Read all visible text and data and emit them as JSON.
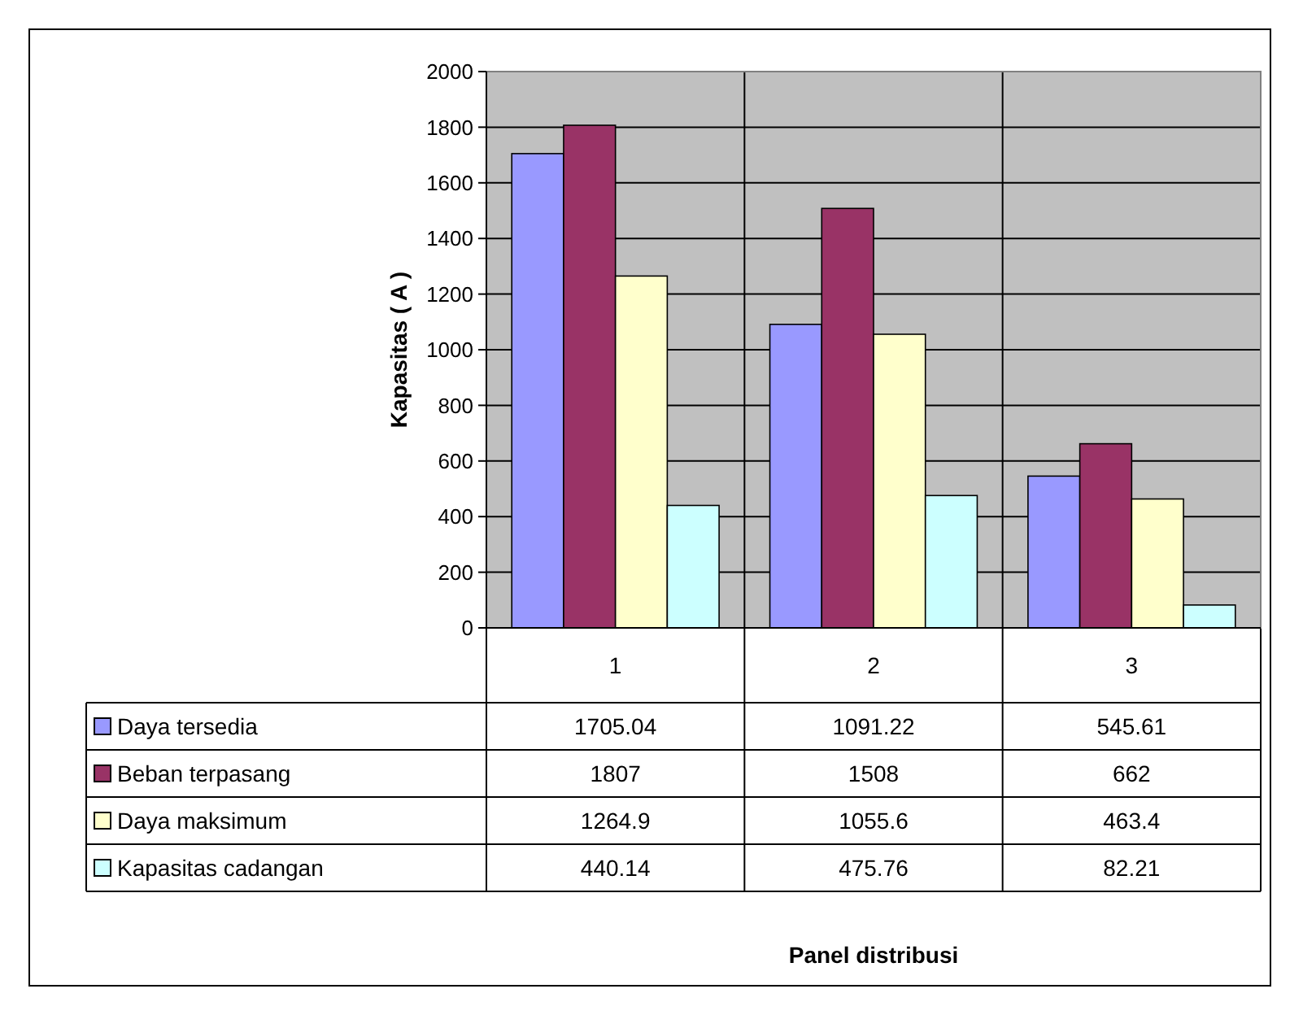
{
  "chart_data": {
    "type": "bar",
    "annotations": [
      "Panel distribusi"
    ],
    "ylabel": "Kapasitas ( A )",
    "categories": [
      "1",
      "2",
      "3"
    ],
    "series": [
      {
        "name": "Daya tersedia",
        "color": "#9999ff",
        "values": [
          1705.04,
          1091.22,
          545.61
        ]
      },
      {
        "name": "Beban terpasang",
        "color": "#993366",
        "values": [
          1807,
          1508,
          662
        ]
      },
      {
        "name": "Daya maksimum",
        "color": "#ffffcc",
        "values": [
          1264.9,
          1055.6,
          463.4
        ]
      },
      {
        "name": "Kapasitas cadangan",
        "color": "#ccffff",
        "values": [
          440.14,
          475.76,
          82.21
        ]
      }
    ],
    "ylim": [
      0,
      2000
    ],
    "yticks": [
      0,
      200,
      400,
      600,
      800,
      1000,
      1200,
      1400,
      1600,
      1800,
      2000
    ],
    "grid": "y",
    "data_labels": true,
    "legend": "bottom left"
  }
}
